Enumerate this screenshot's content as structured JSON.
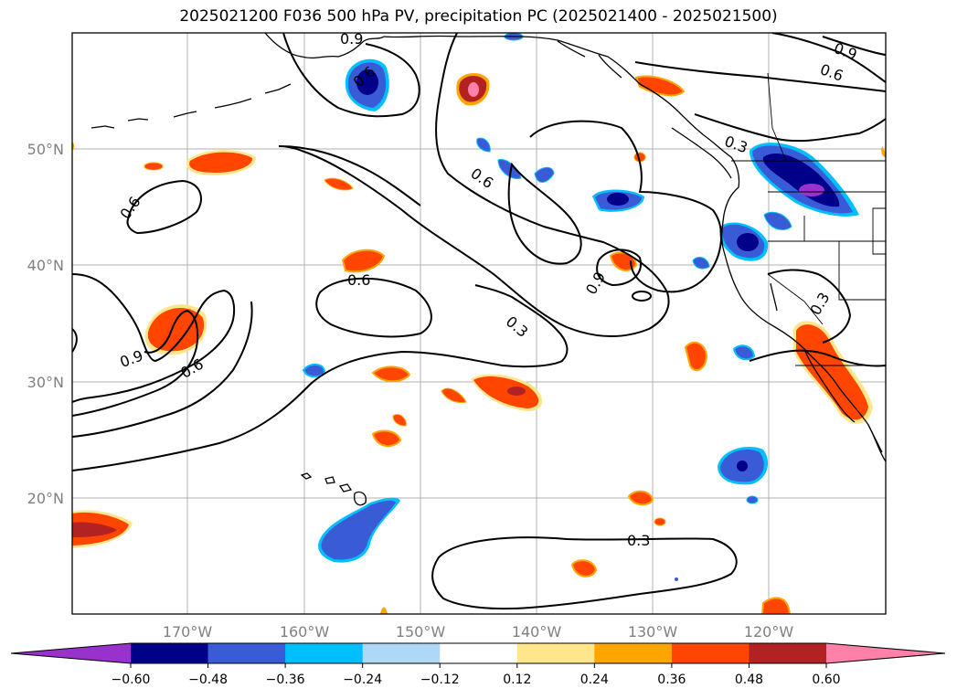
{
  "title": "2025021200 F036 500 hPa PV, precipitation PC (2025021400 - 2025021500)",
  "axes": {
    "lat_ticks": [
      "50°N",
      "40°N",
      "30°N",
      "20°N"
    ],
    "lon_ticks": [
      "170°W",
      "160°W",
      "150°W",
      "140°W",
      "130°W",
      "120°W"
    ],
    "tick_color": "#808080"
  },
  "contours": {
    "labels": [
      "0.9",
      "0.6",
      "0.3",
      "0.6",
      "0.3",
      "0.9",
      "0.6",
      "0.6",
      "0.3",
      "0.6",
      "0.9",
      "0.6",
      "0.9",
      "0.3"
    ],
    "color": "#000000"
  },
  "colorbar": {
    "ticks": [
      "−0.60",
      "−0.48",
      "−0.36",
      "−0.24",
      "−0.12",
      "0.12",
      "0.24",
      "0.36",
      "0.48",
      "0.60"
    ],
    "colors": [
      "#9932cc",
      "#00008b",
      "#3a5bd6",
      "#00bfff",
      "#add8f6",
      "#ffffff",
      "#ffe68c",
      "#ffa500",
      "#ff4500",
      "#b22222",
      "#ff80a8"
    ]
  },
  "palette": {
    "neg_deep": "#00008b",
    "neg_mid": "#3a5bd6",
    "neg_light": "#00bfff",
    "pos_yellow": "#ffe68c",
    "pos_orange": "#ffa500",
    "pos_red": "#ff4500",
    "pos_dark": "#b22222",
    "pos_pink": "#ff80a8",
    "purple": "#9932cc"
  }
}
